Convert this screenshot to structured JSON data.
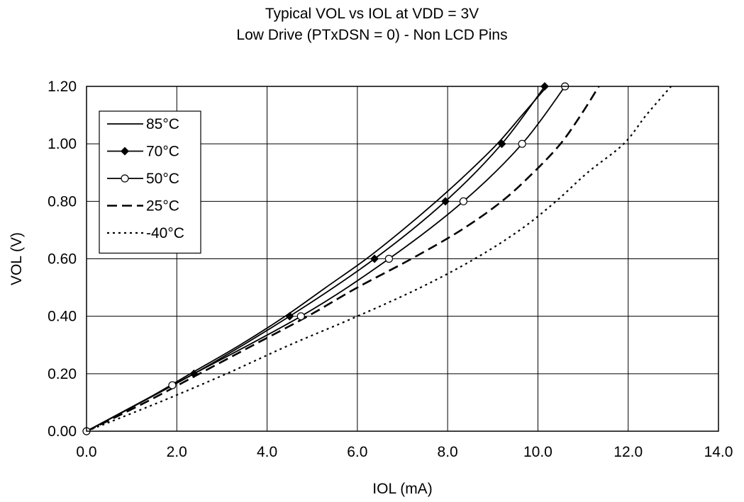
{
  "chart_data": {
    "type": "line",
    "title": "Typical VOL vs IOL at VDD = 3V",
    "subtitle": "Low Drive (PTxDSN = 0) - Non LCD Pins",
    "xlabel": "IOL (mA)",
    "ylabel": "VOL (V)",
    "xlim": [
      0,
      14
    ],
    "ylim": [
      0,
      1.2
    ],
    "x_ticks": [
      "0.0",
      "2.0",
      "4.0",
      "6.0",
      "8.0",
      "10.0",
      "12.0",
      "14.0"
    ],
    "y_ticks": [
      "0.00",
      "0.20",
      "0.40",
      "0.60",
      "0.80",
      "1.00",
      "1.20"
    ],
    "grid": true,
    "legend_position": "top-left",
    "series": [
      {
        "name": "85°C",
        "style": "solid",
        "marker": "none",
        "color": "#000000",
        "points": [
          [
            0,
            0
          ],
          [
            1.2,
            0.1
          ],
          [
            2.3,
            0.2
          ],
          [
            3.4,
            0.3
          ],
          [
            4.4,
            0.4
          ],
          [
            5.3,
            0.5
          ],
          [
            6.2,
            0.6
          ],
          [
            7.0,
            0.7
          ],
          [
            7.75,
            0.8
          ],
          [
            8.45,
            0.9
          ],
          [
            9.1,
            1.0
          ],
          [
            9.65,
            1.1
          ],
          [
            10.2,
            1.2
          ]
        ]
      },
      {
        "name": "70°C",
        "style": "solid",
        "marker": "diamond",
        "color": "#000000",
        "points": [
          [
            0,
            0
          ],
          [
            2.38,
            0.2
          ],
          [
            4.5,
            0.4
          ],
          [
            6.38,
            0.6
          ],
          [
            7.95,
            0.8
          ],
          [
            9.2,
            1.0
          ],
          [
            10.15,
            1.2
          ]
        ]
      },
      {
        "name": "50°C",
        "style": "solid",
        "marker": "circle",
        "color": "#000000",
        "points": [
          [
            0,
            0
          ],
          [
            1.9,
            0.16
          ],
          [
            4.75,
            0.4
          ],
          [
            6.7,
            0.6
          ],
          [
            8.35,
            0.8
          ],
          [
            9.65,
            1.0
          ],
          [
            10.6,
            1.2
          ]
        ]
      },
      {
        "name": "25°C",
        "style": "dashed",
        "marker": "none",
        "color": "#000000",
        "points": [
          [
            0,
            0
          ],
          [
            1.3,
            0.1
          ],
          [
            2.5,
            0.2
          ],
          [
            3.7,
            0.3
          ],
          [
            4.9,
            0.4
          ],
          [
            6.0,
            0.5
          ],
          [
            7.2,
            0.6
          ],
          [
            8.3,
            0.7
          ],
          [
            9.2,
            0.8
          ],
          [
            9.9,
            0.9
          ],
          [
            10.5,
            1.0
          ],
          [
            10.95,
            1.1
          ],
          [
            11.35,
            1.2
          ]
        ]
      },
      {
        "name": "-40°C",
        "style": "dotted",
        "marker": "none",
        "color": "#000000",
        "points": [
          [
            0,
            0
          ],
          [
            1.6,
            0.1
          ],
          [
            3.1,
            0.2
          ],
          [
            4.5,
            0.3
          ],
          [
            6.0,
            0.4
          ],
          [
            7.4,
            0.5
          ],
          [
            8.6,
            0.6
          ],
          [
            9.6,
            0.7
          ],
          [
            10.4,
            0.8
          ],
          [
            11.1,
            0.9
          ],
          [
            11.9,
            1.0
          ],
          [
            12.4,
            1.1
          ],
          [
            12.95,
            1.2
          ]
        ]
      }
    ]
  }
}
